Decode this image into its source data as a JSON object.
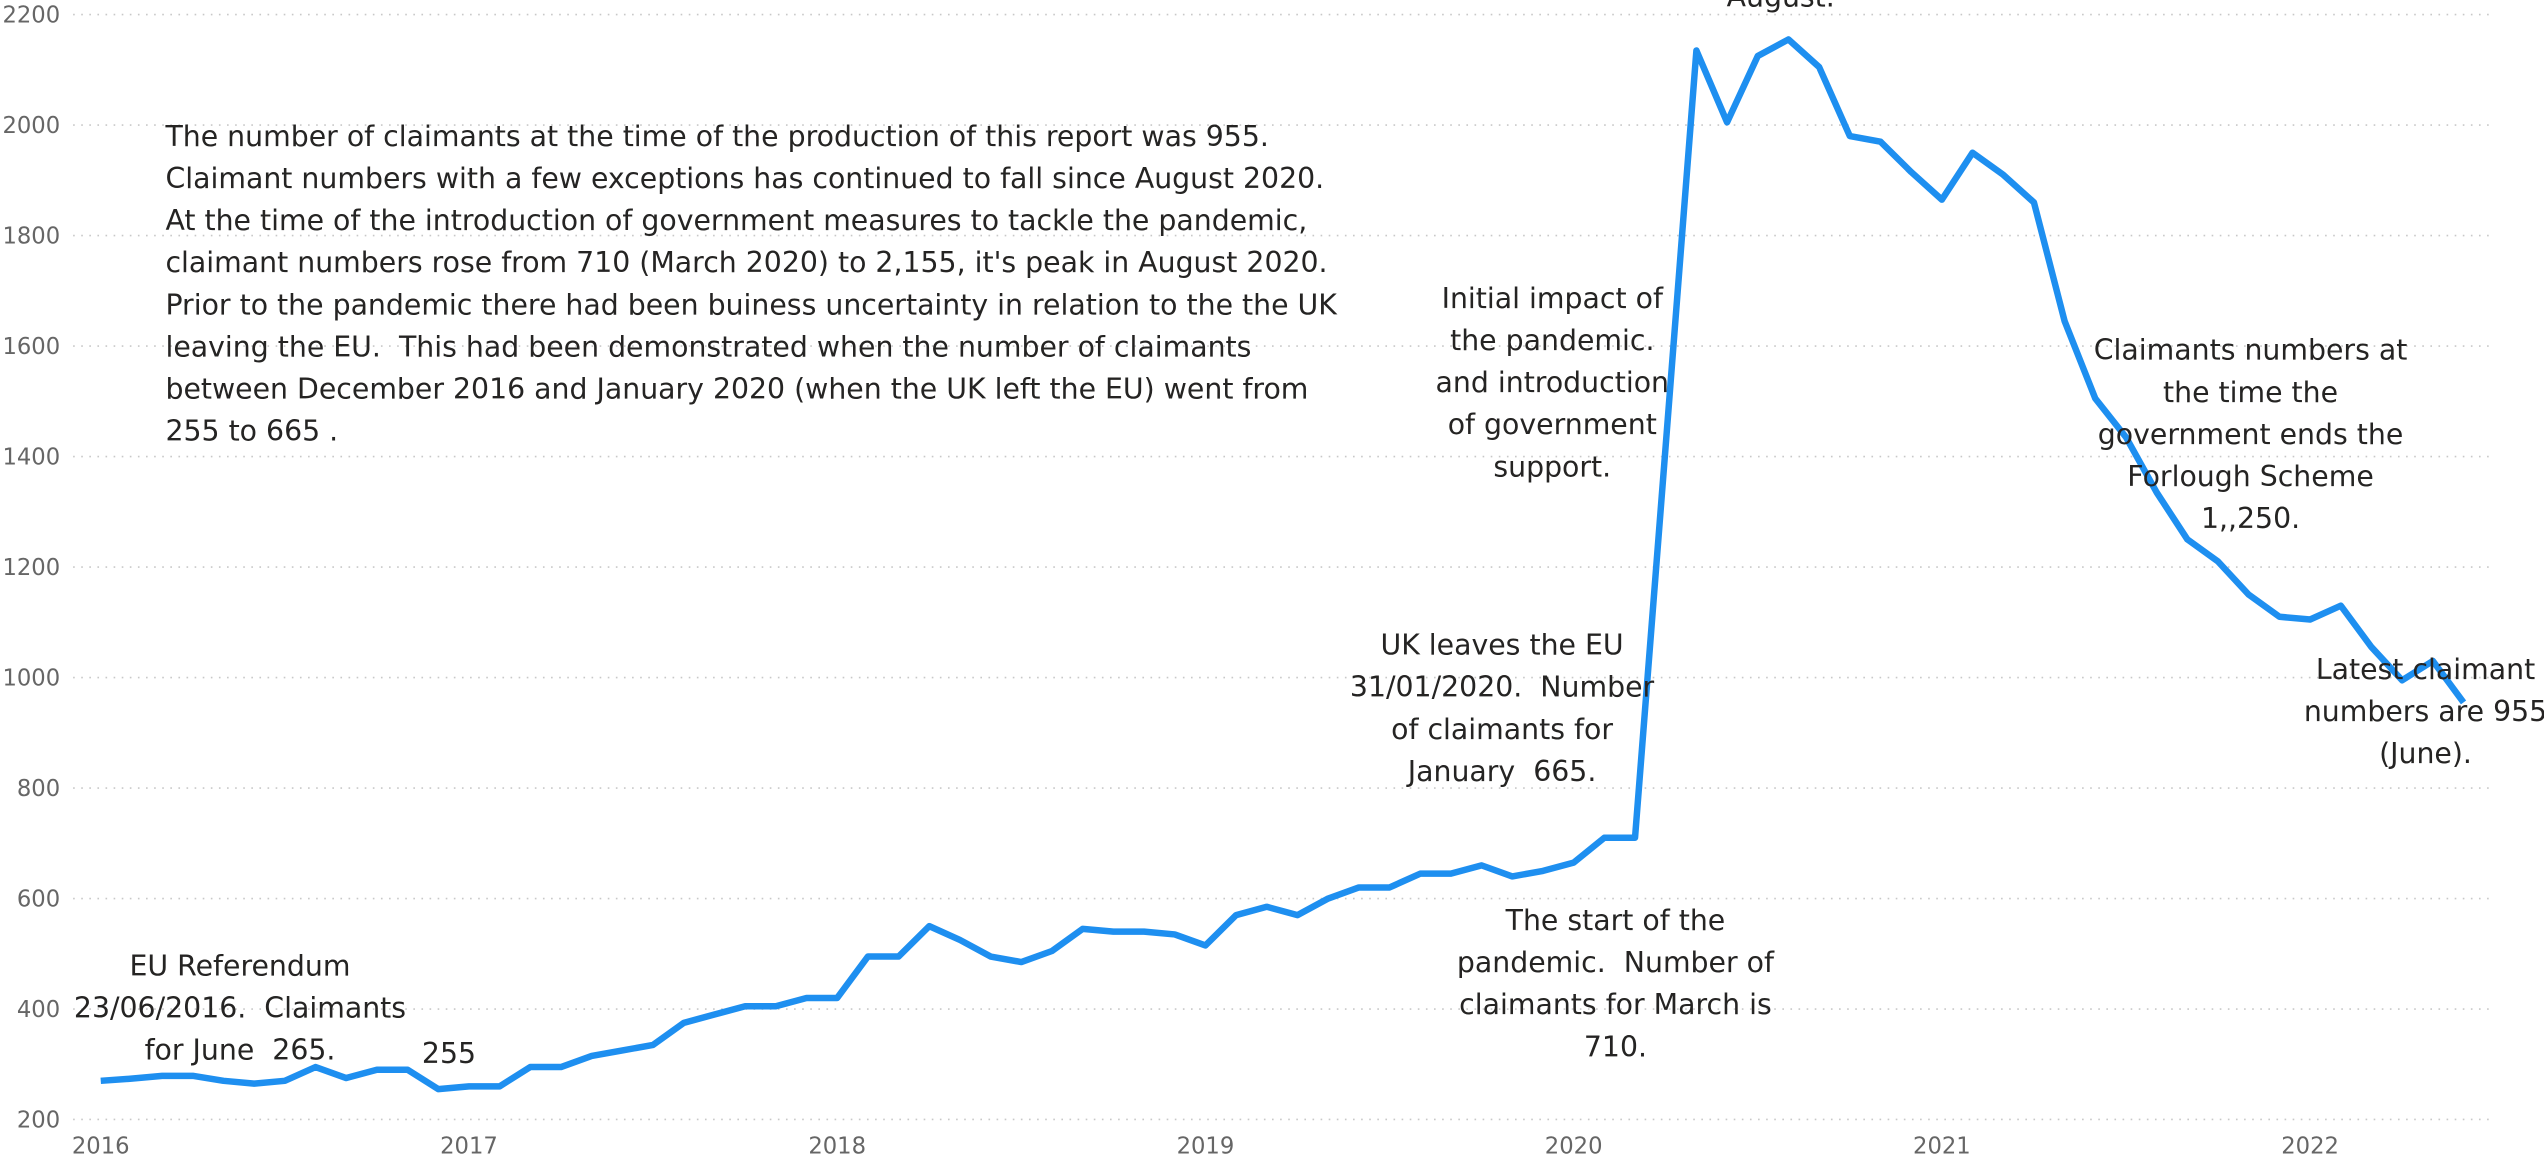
{
  "chart_data": {
    "type": "line",
    "x": [
      "2016-01",
      "2016-02",
      "2016-03",
      "2016-04",
      "2016-05",
      "2016-06",
      "2016-07",
      "2016-08",
      "2016-09",
      "2016-10",
      "2016-11",
      "2016-12",
      "2017-01",
      "2017-02",
      "2017-03",
      "2017-04",
      "2017-05",
      "2017-06",
      "2017-07",
      "2017-08",
      "2017-09",
      "2017-10",
      "2017-11",
      "2017-12",
      "2018-01",
      "2018-02",
      "2018-03",
      "2018-04",
      "2018-05",
      "2018-06",
      "2018-07",
      "2018-08",
      "2018-09",
      "2018-10",
      "2018-11",
      "2018-12",
      "2019-01",
      "2019-02",
      "2019-03",
      "2019-04",
      "2019-05",
      "2019-06",
      "2019-07",
      "2019-08",
      "2019-09",
      "2019-10",
      "2019-11",
      "2019-12",
      "2020-01",
      "2020-02",
      "2020-03",
      "2020-04",
      "2020-05",
      "2020-06",
      "2020-07",
      "2020-08",
      "2020-09",
      "2020-10",
      "2020-11",
      "2020-12",
      "2021-01",
      "2021-02",
      "2021-03",
      "2021-04",
      "2021-05",
      "2021-06",
      "2021-07",
      "2021-08",
      "2021-09",
      "2021-10",
      "2021-11",
      "2021-12",
      "2022-01",
      "2022-02",
      "2022-03",
      "2022-04",
      "2022-05",
      "2022-06"
    ],
    "values": [
      270,
      274,
      279,
      279,
      270,
      265,
      270,
      295,
      275,
      290,
      290,
      255,
      260,
      260,
      295,
      295,
      315,
      325,
      335,
      375,
      390,
      405,
      405,
      420,
      420,
      495,
      495,
      550,
      525,
      495,
      485,
      505,
      545,
      540,
      540,
      535,
      515,
      570,
      585,
      570,
      600,
      620,
      620,
      645,
      645,
      660,
      640,
      650,
      665,
      710,
      710,
      1420,
      2135,
      2005,
      2125,
      2155,
      2105,
      1980,
      1970,
      1915,
      1865,
      1950,
      1910,
      1860,
      1645,
      1505,
      1435,
      1335,
      1250,
      1210,
      1150,
      1110,
      1105,
      1130,
      1055,
      995,
      1030,
      955
    ],
    "color": "#1e8ff0",
    "xlim": [
      2015.925,
      2022.485
    ],
    "xticks": [
      2016,
      2017,
      2018,
      2019,
      2020,
      2021,
      2022
    ],
    "ylim": [
      200,
      2200
    ],
    "yticks": [
      200,
      400,
      600,
      800,
      1000,
      1200,
      1400,
      1600,
      1800,
      2000,
      2200
    ],
    "grid": true,
    "annotations": [
      {
        "lines": [
          "The number of claimants at the time of the production of this report was 955.",
          "Claimant numbers with a few exceptions has continued to fall since August 2020.",
          "At the time of the introduction of government measures to tackle the pandemic,",
          "claimant numbers rose from 710 (March 2020) to 2,155, it's peak in August 2020.",
          "Prior to the pandemic there had been buiness uncertainty in relation to the the UK",
          "leaving the EU.  This had been demonstrated when the number of claimants",
          "between December 2016 and January 2020 (when the UK left the EU) went from",
          "255 to 665 ."
        ]
      },
      {
        "lines": [
          "Initial impact of",
          "the pandemic.",
          "and introduction",
          "of government",
          "support."
        ]
      },
      {
        "lines": [
          "Claimants numbers at",
          "the time the",
          "government ends the",
          "Forlough Scheme",
          "1,,250."
        ]
      },
      {
        "lines": [
          "UK leaves the EU",
          "31/01/2020.  Number",
          "of claimants for",
          "January  665."
        ]
      },
      {
        "lines": [
          "Latest claimant",
          "numbers are 955",
          "(June)."
        ]
      },
      {
        "lines": [
          "The start of the",
          "pandemic.  Number of",
          "claimants for March is",
          "710."
        ]
      },
      {
        "lines": [
          "EU Referendum",
          "23/06/2016.  Claimants",
          "for June  265."
        ]
      },
      {
        "lines": [
          "255"
        ]
      },
      {
        "lines": [
          "August."
        ]
      }
    ]
  }
}
